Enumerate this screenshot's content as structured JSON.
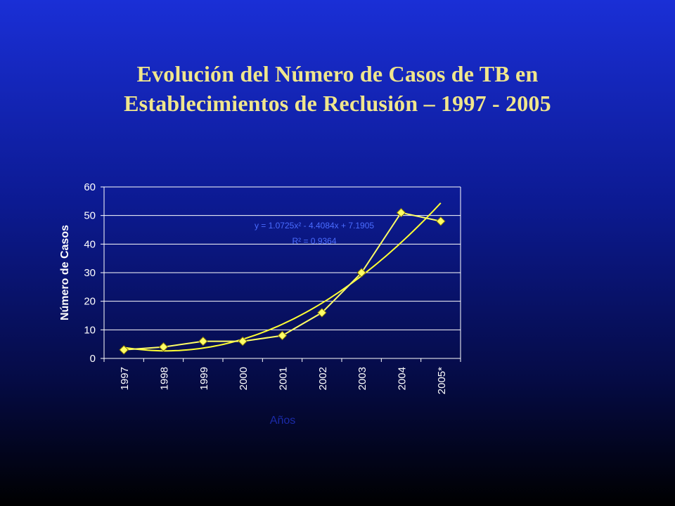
{
  "title": {
    "line1": "Evolución del Número de Casos de TB en",
    "line2": "Establecimientos de Reclusión – 1997 - 2005"
  },
  "chart_data": {
    "type": "line",
    "categories": [
      "1997",
      "1998",
      "1999",
      "2000",
      "2001",
      "2002",
      "2003",
      "2004",
      "2005*"
    ],
    "series": [
      {
        "values": [
          3,
          4,
          6,
          6,
          8,
          16,
          30,
          51,
          48
        ],
        "color": "#ffff66",
        "marker": "diamond"
      }
    ],
    "trendline": {
      "type": "polynomial-2",
      "coefficients": {
        "a": 1.0725,
        "b": -4.4084,
        "c": 7.1905
      },
      "equation": "y = 1.0725x² - 4.4084x + 7.1905",
      "r2_label": "R² = 0.9364",
      "color": "#ffff33"
    },
    "title": "",
    "xlabel": "Años",
    "ylabel": "Número de Casos",
    "ylim": [
      0,
      60
    ],
    "yticks": [
      0,
      10,
      20,
      30,
      40,
      50,
      60
    ],
    "grid": true,
    "colors": {
      "background": "#0b1aa0",
      "axis": "#ffffff",
      "series": "#ffff66",
      "trend": "#ffff33"
    }
  }
}
